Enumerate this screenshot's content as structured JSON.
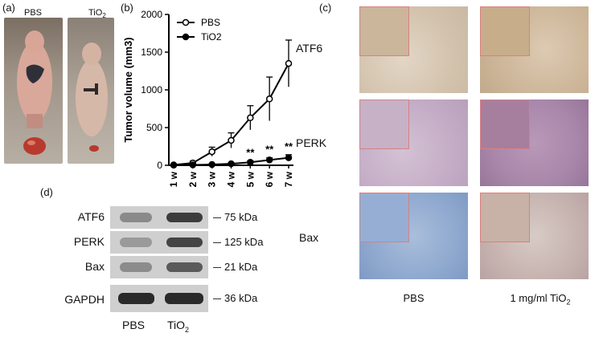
{
  "panel_a": {
    "label": "(a)",
    "left_title": "PBS",
    "right_title_main": "TiO",
    "right_title_sub": "2"
  },
  "panel_b": {
    "label": "(b)"
  },
  "chart_data": {
    "type": "line",
    "ylabel": "Tumor volume (mm3)",
    "xlabel": "",
    "categories": [
      "1 w",
      "2 w",
      "3 w",
      "4 w",
      "5 w",
      "6 w",
      "7 w"
    ],
    "ylim": [
      0,
      2000
    ],
    "yticks": [
      0,
      500,
      1000,
      1500,
      2000
    ],
    "legend_position": "top-left",
    "series": [
      {
        "name": "PBS",
        "marker": "open-circle",
        "values": [
          5,
          30,
          180,
          330,
          630,
          880,
          1350
        ],
        "errors": [
          5,
          25,
          60,
          100,
          160,
          290,
          310
        ]
      },
      {
        "name": "TiO2",
        "marker": "filled-circle",
        "values": [
          2,
          5,
          10,
          20,
          40,
          70,
          100
        ],
        "errors": [
          2,
          5,
          8,
          15,
          20,
          30,
          40
        ]
      }
    ],
    "annotations": [
      {
        "x": "5 w",
        "text": "**"
      },
      {
        "x": "6 w",
        "text": "**"
      },
      {
        "x": "7 w",
        "text": "**"
      }
    ]
  },
  "panel_c": {
    "label": "(c)",
    "rows": [
      "ATF6",
      "PERK",
      "Bax"
    ],
    "col_left": "PBS",
    "col_right_main": "1 mg/ml TiO",
    "col_right_sub": "2"
  },
  "panel_d": {
    "label": "(d)",
    "proteins": [
      "ATF6",
      "PERK",
      "Bax",
      "GAPDH"
    ],
    "sizes": [
      "75 kDa",
      "125 kDa",
      "21 kDa",
      "36 kDa"
    ],
    "lane_left": "PBS",
    "lane_right_main": "TiO",
    "lane_right_sub": "2"
  },
  "colors": {
    "ihc_brown_bg": "#d9cbb9",
    "ihc_purple_bg": "#c9b3cf",
    "ihc_blue_bg": "#9db3d3",
    "inset_border": "#d98080"
  }
}
